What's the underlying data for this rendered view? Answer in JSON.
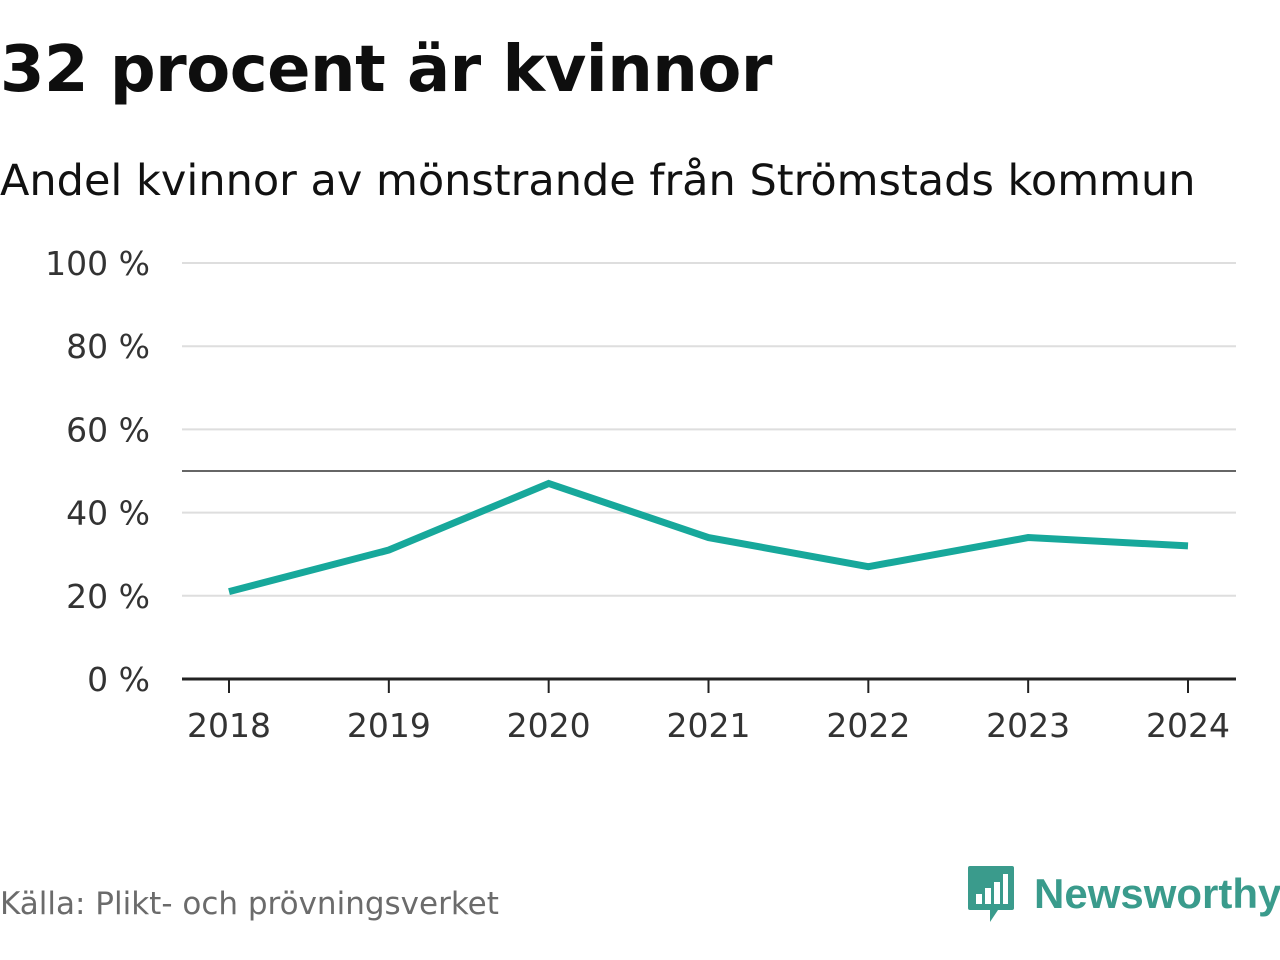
{
  "title": "32 procent är kvinnor",
  "subtitle": "Andel kvinnor av mönstrande från Strömstads kommun",
  "source": "Källa: Plikt- och prövningsverket",
  "brand": {
    "name": "Newsworthy",
    "icon": "newsworthy-logo-icon"
  },
  "colors": {
    "line": "#17a89b",
    "reference_line": "#666666",
    "grid": "#dedede",
    "axis": "#222222",
    "brand": "#3a9b8c"
  },
  "chart_data": {
    "type": "line",
    "title": "32 procent är kvinnor",
    "subtitle": "Andel kvinnor av mönstrande från Strömstads kommun",
    "xlabel": "",
    "ylabel": "",
    "categories": [
      "2018",
      "2019",
      "2020",
      "2021",
      "2022",
      "2023",
      "2024"
    ],
    "series": [
      {
        "name": "Andel kvinnor",
        "values": [
          21,
          31,
          47,
          34,
          27,
          34,
          32
        ]
      }
    ],
    "ylim": [
      0,
      100
    ],
    "yticks": [
      0,
      20,
      40,
      60,
      80,
      100
    ],
    "ytick_labels": [
      "0 %",
      "20 %",
      "40 %",
      "60 %",
      "80 %",
      "100 %"
    ],
    "reference_line": 50,
    "grid": true,
    "legend": "none"
  }
}
